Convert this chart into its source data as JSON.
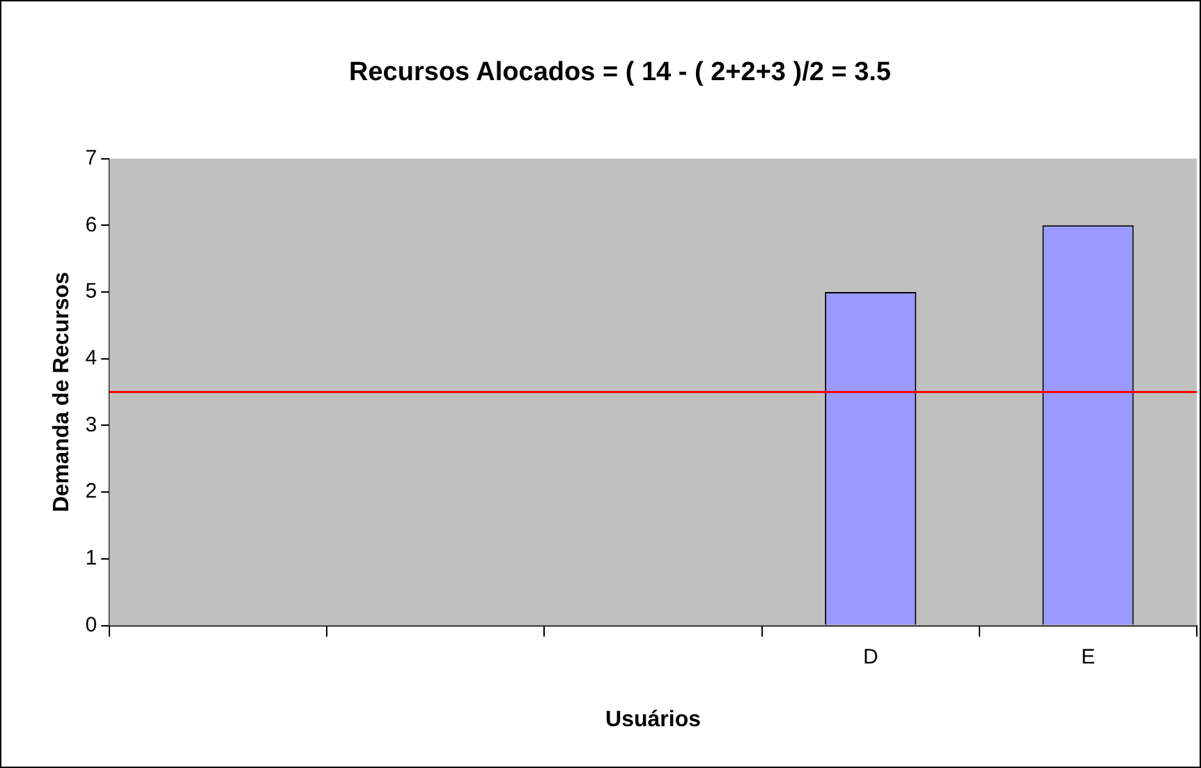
{
  "chart_data": {
    "type": "bar",
    "title": "Recursos Alocados = ( 14 - ( 2+2+3 )/2 = 3.5",
    "xlabel": "Usuários",
    "ylabel": "Demanda de Recursos",
    "categories": [
      null,
      null,
      null,
      "D",
      "E"
    ],
    "series": [
      {
        "color": "#9999ff",
        "values": [
          null,
          null,
          null,
          5,
          6
        ]
      }
    ],
    "ylim": [
      0,
      7
    ],
    "yticks": [
      0,
      1,
      2,
      3,
      4,
      5,
      6,
      7
    ],
    "grid": false,
    "legend": false,
    "ref_lines": [
      {
        "axis": "y",
        "value": 3.5,
        "color": "#ff0000"
      }
    ]
  }
}
